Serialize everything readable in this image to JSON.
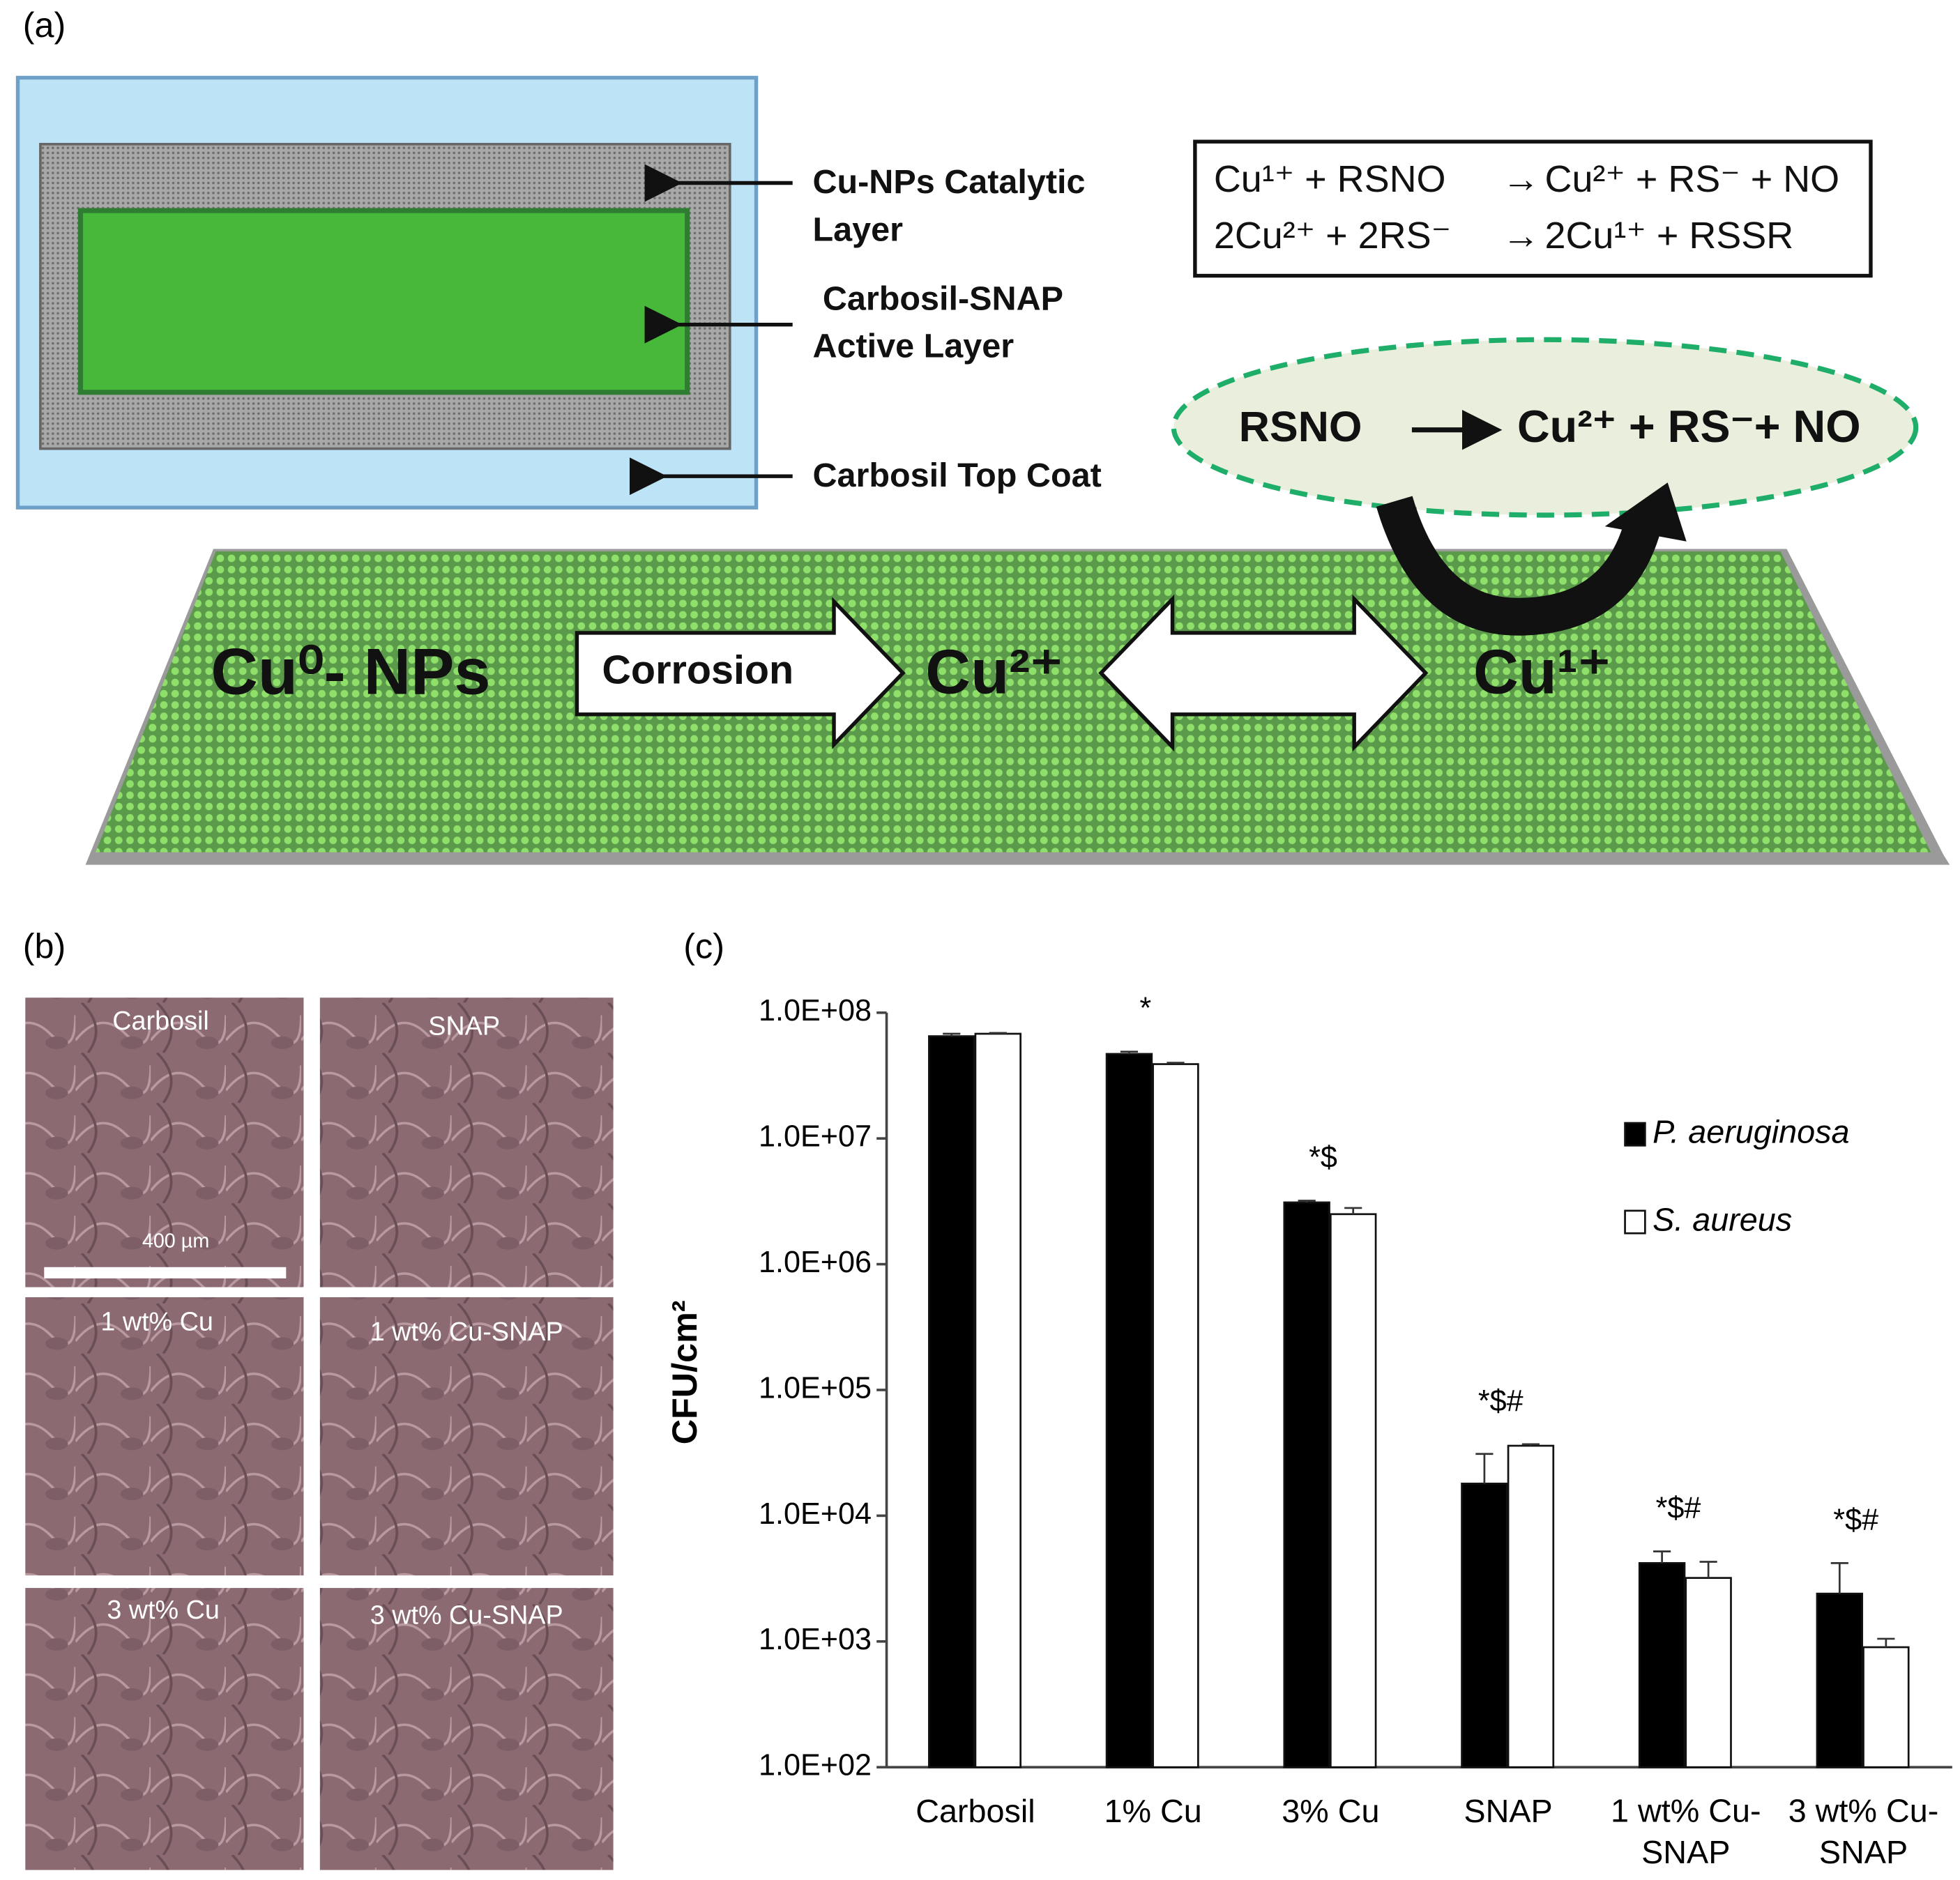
{
  "panel_labels": [
    "(a)",
    "(b)",
    "(c)"
  ],
  "diagram": {
    "layers": [
      [
        "Cu-NPs Catalytic",
        "Layer"
      ],
      [
        "Carbosil-SNAP",
        "Active Layer"
      ],
      [
        "Carbosil Top Coat"
      ]
    ],
    "equations": [
      [
        "Cu¹⁺ + RSNO",
        "→",
        "Cu²⁺ + RS⁻ + NO"
      ],
      [
        "2Cu²⁺ + 2RS⁻",
        "→",
        "2Cu¹⁺ + RSSR"
      ]
    ],
    "cycle": {
      "left": "RSNO",
      "right": "Cu²⁺ + RS⁻+ NO"
    },
    "surface": {
      "start": "Cu⁰- NPs",
      "arrow": "Corrosion",
      "middle": "Cu²⁺",
      "end": "Cu¹⁺"
    }
  },
  "micrographs": {
    "labels": [
      "Carbosil",
      "SNAP",
      "1 wt% Cu",
      "1 wt% Cu-SNAP",
      "3 wt% Cu",
      "3 wt% Cu-SNAP"
    ],
    "scale_bar": "400 µm"
  },
  "chart_data": {
    "type": "bar",
    "ylabel": "CFU/cm²",
    "categories": [
      "Carbosil",
      "1% Cu",
      "3% Cu",
      "SNAP",
      "1 wt% Cu-SNAP",
      "3 wt% Cu-SNAP"
    ],
    "series": [
      {
        "name": "P. aeruginosa",
        "color": "#000000",
        "values": [
          65000000,
          47000000,
          3100000,
          18000,
          4200,
          2400
        ],
        "errors": [
          3000000,
          2000000,
          100000,
          13000,
          1000,
          1800
        ]
      },
      {
        "name": "S. aureus",
        "color": "#ffffff",
        "values": [
          68000000,
          39000000,
          2500000,
          36000,
          3200,
          900
        ],
        "errors": [
          1000000,
          1000000,
          300000,
          1000,
          1100,
          150
        ]
      }
    ],
    "significance": [
      null,
      "*",
      "*$",
      "*$#",
      "*$#",
      "*$#"
    ],
    "log_y": true,
    "ylim": [
      100,
      100000000
    ],
    "yticks": [
      {
        "value": 100,
        "label": "1.0E+02"
      },
      {
        "value": 1000,
        "label": "1.0E+03"
      },
      {
        "value": 10000,
        "label": "1.0E+04"
      },
      {
        "value": 100000,
        "label": "1.0E+05"
      },
      {
        "value": 1000000,
        "label": "1.0E+06"
      },
      {
        "value": 10000000,
        "label": "1.0E+07"
      },
      {
        "value": 100000000,
        "label": "1.0E+08"
      }
    ],
    "legend": "right"
  }
}
